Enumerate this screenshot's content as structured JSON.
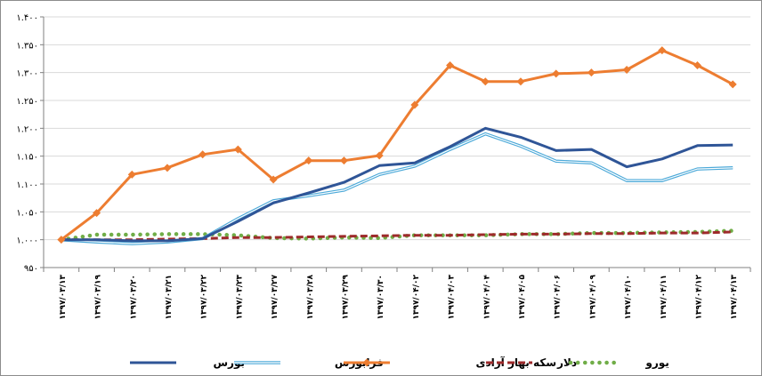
{
  "chart_data": {
    "type": "line",
    "title": "",
    "xlabel": "",
    "ylabel": "",
    "ylim": [
      950,
      1400
    ],
    "y_ticks": [
      "۹۵۰",
      "۱.۰۰۰",
      "۱.۰۵۰",
      "۱.۱۰۰",
      "۱.۱۵۰",
      "۱.۲۰۰",
      "۱.۲۵۰",
      "۱.۳۰۰",
      "۱.۳۵۰",
      "۱.۴۰۰"
    ],
    "y_tick_values": [
      950,
      1000,
      1050,
      1100,
      1150,
      1200,
      1250,
      1300,
      1350,
      1400
    ],
    "categories": [
      "۱۳۹۷/۰۳/۱۳",
      "۱۳۹۷/۰۳/۱۹",
      "۱۳۹۷/۰۳/۲۰",
      "۱۳۹۷/۰۳/۲۱",
      "۱۳۹۷/۰۳/۲۲",
      "۱۳۹۷/۰۳/۲۳",
      "۱۳۹۷/۰۳/۲۷",
      "۱۳۹۷/۰۳/۲۸",
      "۱۳۹۷/۰۳/۲۹",
      "۱۳۹۷/۰۳/۳۰",
      "۱۳۹۷/۰۴/۰۲",
      "۱۳۹۷/۰۴/۰۳",
      "۱۳۹۷/۰۴/۰۴",
      "۱۳۹۷/۰۴/۰۵",
      "۱۳۹۷/۰۴/۰۶",
      "۱۳۹۷/۰۴/۰۹",
      "۱۳۹۷/۰۴/۱۰",
      "۱۳۹۷/۰۴/۱۱",
      "۱۳۹۷/۰۴/۱۲",
      "۱۳۹۷/۰۴/۱۳"
    ],
    "grid": true,
    "legend_position": "bottom",
    "series": [
      {
        "name": "بورس",
        "color": "#2f5597",
        "style": "solid-thick",
        "values": [
          1000,
          1000,
          998,
          998,
          1002,
          1033,
          1066,
          1084,
          1103,
          1133,
          1138,
          1167,
          1200,
          1184,
          1160,
          1162,
          1131,
          1145,
          1169,
          1170
        ]
      },
      {
        "name": "فرابورس",
        "color": "#4aa8d8",
        "style": "double",
        "values": [
          1000,
          996,
          993,
          996,
          1002,
          1038,
          1070,
          1079,
          1089,
          1117,
          1132,
          1162,
          1190,
          1168,
          1141,
          1138,
          1106,
          1106,
          1127,
          1129
        ]
      },
      {
        "name": "سکه بهار آزادی",
        "color": "#ed7d31",
        "style": "diamond",
        "values": [
          1000,
          1048,
          1117,
          1129,
          1153,
          1162,
          1108,
          1142,
          1142,
          1151,
          1242,
          1313,
          1284,
          1284,
          1298,
          1300,
          1305,
          1340,
          1313,
          1279
        ]
      },
      {
        "name": "دلار",
        "color": "#9e2a2b",
        "style": "dashed",
        "values": [
          1000,
          1000,
          1000,
          1001,
          1002,
          1004,
          1004,
          1005,
          1006,
          1007,
          1008,
          1008,
          1009,
          1010,
          1010,
          1011,
          1011,
          1012,
          1012,
          1014
        ]
      },
      {
        "name": "یورو",
        "color": "#70ad47",
        "style": "dotted",
        "values": [
          1000,
          1009,
          1009,
          1010,
          1010,
          1008,
          1003,
          1002,
          1004,
          1003,
          1008,
          1008,
          1008,
          1010,
          1010,
          1012,
          1012,
          1013,
          1014,
          1016
        ]
      }
    ]
  }
}
